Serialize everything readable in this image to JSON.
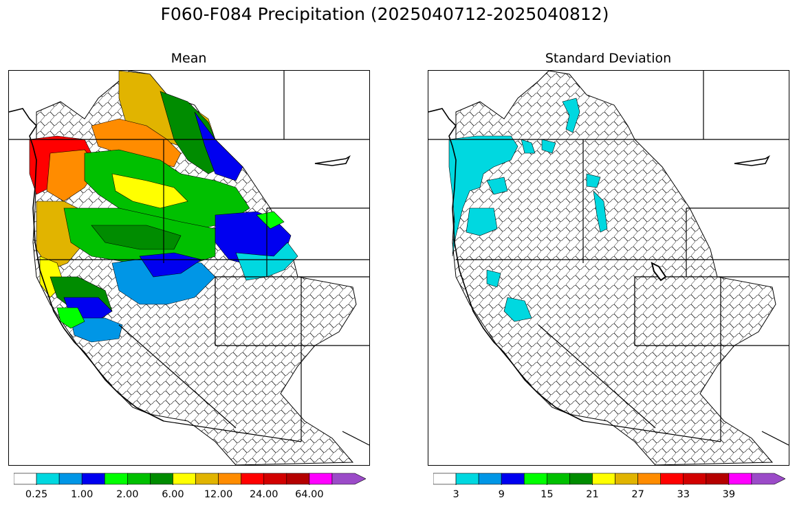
{
  "title": "F060-F084 Precipitation (2025040712-2025040812)",
  "panels": [
    {
      "id": "mean",
      "title": "Mean",
      "colorbar": {
        "colors": [
          "#ffffff",
          "#00d8e0",
          "#0096e6",
          "#0000f0",
          "#00ff00",
          "#00c000",
          "#008c00",
          "#ffff00",
          "#e1b400",
          "#ff8c00",
          "#ff0000",
          "#d20000",
          "#b40000",
          "#ff00ff",
          "#9b4bc8"
        ],
        "tick_labels": [
          "0.25",
          "1.00",
          "2.00",
          "6.00",
          "12.00",
          "24.00",
          "64.00"
        ],
        "extend": "max"
      }
    },
    {
      "id": "stddev",
      "title": "Standard Deviation",
      "colorbar": {
        "colors": [
          "#ffffff",
          "#00d8e0",
          "#0096e6",
          "#0000f0",
          "#00ff00",
          "#00c000",
          "#008c00",
          "#ffff00",
          "#e1b400",
          "#ff8c00",
          "#ff0000",
          "#d20000",
          "#b40000",
          "#ff00ff",
          "#9b4bc8"
        ],
        "tick_labels": [
          "3",
          "9",
          "15",
          "21",
          "27",
          "33",
          "39"
        ],
        "extend": "max"
      }
    }
  ]
}
